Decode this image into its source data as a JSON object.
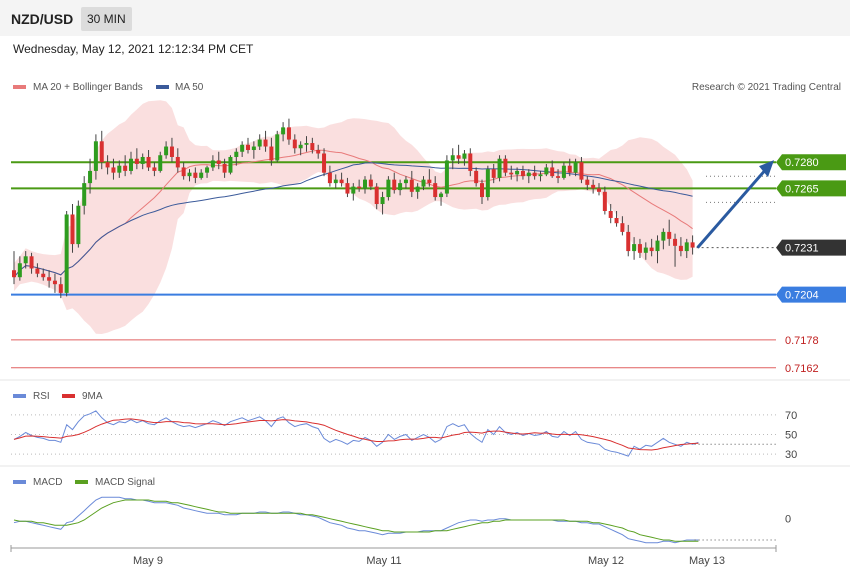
{
  "header": {
    "pair": "NZD/USD",
    "timeframe": "30 MIN"
  },
  "date_line": "Wednesday, May 12, 2021 12:12:34 PM CET",
  "legend": {
    "ma20": "MA 20 + Bollinger Bands",
    "ma50": "MA 50",
    "credit": "Research © 2021 Trading Central",
    "rsi": "RSI",
    "rsi_ma": "9MA",
    "macd": "MACD",
    "macd_signal": "MACD Signal"
  },
  "colors": {
    "bull": "#2e9c1f",
    "bear": "#d93030",
    "bands": "#fadcdc",
    "ma20": "#e87a7a",
    "ma50": "#3b5a9a",
    "resistance": "#4a9a14",
    "support": "#3a7de0",
    "deep_support": "#e06060",
    "current": "#333333",
    "rsi": "#6a8ad8",
    "macd": "#6a8ad8",
    "signal": "#5aa020",
    "arrow": "#2a5aa0"
  },
  "chart_data": {
    "type": "candlestick",
    "x_ticks": [
      "May 9",
      "May 11",
      "May 12",
      "May 13"
    ],
    "ylim": [
      0.7155,
      0.7318
    ],
    "candles_ohlc": [
      [
        0.7218,
        0.7229,
        0.721,
        0.7214
      ],
      [
        0.7214,
        0.7226,
        0.7212,
        0.7222
      ],
      [
        0.7222,
        0.7229,
        0.7219,
        0.7226
      ],
      [
        0.7226,
        0.7228,
        0.7216,
        0.7219
      ],
      [
        0.7219,
        0.7222,
        0.7214,
        0.7216
      ],
      [
        0.7216,
        0.7219,
        0.7212,
        0.7214
      ],
      [
        0.7214,
        0.7218,
        0.7208,
        0.7212
      ],
      [
        0.7212,
        0.7216,
        0.7205,
        0.721
      ],
      [
        0.721,
        0.7214,
        0.7202,
        0.7205
      ],
      [
        0.7205,
        0.7252,
        0.7203,
        0.725
      ],
      [
        0.725,
        0.7256,
        0.7228,
        0.7233
      ],
      [
        0.7233,
        0.7258,
        0.7231,
        0.7255
      ],
      [
        0.7255,
        0.7272,
        0.725,
        0.7268
      ],
      [
        0.7268,
        0.7282,
        0.7262,
        0.7275
      ],
      [
        0.7275,
        0.7296,
        0.727,
        0.7292
      ],
      [
        0.7292,
        0.7298,
        0.7276,
        0.728
      ],
      [
        0.728,
        0.7284,
        0.7273,
        0.7277
      ],
      [
        0.7277,
        0.7282,
        0.727,
        0.7274
      ],
      [
        0.7274,
        0.7281,
        0.7271,
        0.7278
      ],
      [
        0.7278,
        0.7284,
        0.7272,
        0.7275
      ],
      [
        0.7275,
        0.7286,
        0.7273,
        0.7282
      ],
      [
        0.7282,
        0.7288,
        0.7276,
        0.7279
      ],
      [
        0.7279,
        0.7285,
        0.7276,
        0.7283
      ],
      [
        0.7283,
        0.7287,
        0.7275,
        0.7277
      ],
      [
        0.7277,
        0.728,
        0.7272,
        0.7275
      ],
      [
        0.7275,
        0.7286,
        0.7274,
        0.7284
      ],
      [
        0.7284,
        0.7292,
        0.7282,
        0.7289
      ],
      [
        0.7289,
        0.7294,
        0.728,
        0.7283
      ],
      [
        0.7283,
        0.7288,
        0.7274,
        0.7277
      ],
      [
        0.7277,
        0.728,
        0.727,
        0.7272
      ],
      [
        0.7272,
        0.7276,
        0.7269,
        0.7274
      ],
      [
        0.7274,
        0.7277,
        0.7268,
        0.7271
      ],
      [
        0.7271,
        0.7276,
        0.727,
        0.7274
      ],
      [
        0.7274,
        0.7278,
        0.7271,
        0.7277
      ],
      [
        0.7277,
        0.7284,
        0.7275,
        0.7281
      ],
      [
        0.7281,
        0.7286,
        0.7276,
        0.7279
      ],
      [
        0.7279,
        0.7282,
        0.7271,
        0.7274
      ],
      [
        0.7274,
        0.7284,
        0.7273,
        0.7283
      ],
      [
        0.7283,
        0.7288,
        0.7278,
        0.7286
      ],
      [
        0.7286,
        0.7292,
        0.7283,
        0.729
      ],
      [
        0.729,
        0.7294,
        0.7285,
        0.7287
      ],
      [
        0.7287,
        0.7292,
        0.7282,
        0.7289
      ],
      [
        0.7289,
        0.7296,
        0.7287,
        0.7293
      ],
      [
        0.7293,
        0.7298,
        0.7286,
        0.7289
      ],
      [
        0.7289,
        0.7294,
        0.7278,
        0.7281
      ],
      [
        0.7281,
        0.7298,
        0.728,
        0.7296
      ],
      [
        0.7296,
        0.7303,
        0.7292,
        0.73
      ],
      [
        0.73,
        0.7305,
        0.729,
        0.7293
      ],
      [
        0.7293,
        0.7296,
        0.7285,
        0.7288
      ],
      [
        0.7288,
        0.7292,
        0.7284,
        0.729
      ],
      [
        0.729,
        0.7295,
        0.7286,
        0.7291
      ],
      [
        0.7291,
        0.7294,
        0.7285,
        0.7287
      ],
      [
        0.7287,
        0.729,
        0.7282,
        0.7285
      ],
      [
        0.7285,
        0.7288,
        0.7272,
        0.7274
      ],
      [
        0.7274,
        0.7278,
        0.7266,
        0.7268
      ],
      [
        0.7268,
        0.7273,
        0.7265,
        0.727
      ],
      [
        0.727,
        0.7274,
        0.7266,
        0.7268
      ],
      [
        0.7268,
        0.7271,
        0.726,
        0.7262
      ],
      [
        0.7262,
        0.7268,
        0.7258,
        0.7266
      ],
      [
        0.7266,
        0.727,
        0.7263,
        0.7265
      ],
      [
        0.7265,
        0.7272,
        0.7262,
        0.727
      ],
      [
        0.727,
        0.7273,
        0.7264,
        0.7266
      ],
      [
        0.7266,
        0.7268,
        0.7253,
        0.7256
      ],
      [
        0.7256,
        0.7263,
        0.725,
        0.726
      ],
      [
        0.726,
        0.7272,
        0.7258,
        0.727
      ],
      [
        0.727,
        0.7274,
        0.7262,
        0.7264
      ],
      [
        0.7264,
        0.727,
        0.7261,
        0.7268
      ],
      [
        0.7268,
        0.7272,
        0.7265,
        0.727
      ],
      [
        0.727,
        0.7275,
        0.726,
        0.7263
      ],
      [
        0.7263,
        0.7268,
        0.7259,
        0.7266
      ],
      [
        0.7266,
        0.7272,
        0.7264,
        0.727
      ],
      [
        0.727,
        0.7276,
        0.7266,
        0.7268
      ],
      [
        0.7268,
        0.7272,
        0.7258,
        0.726
      ],
      [
        0.726,
        0.7263,
        0.7255,
        0.7262
      ],
      [
        0.7262,
        0.7284,
        0.726,
        0.7281
      ],
      [
        0.7281,
        0.7288,
        0.7276,
        0.7284
      ],
      [
        0.7284,
        0.729,
        0.7279,
        0.7282
      ],
      [
        0.7282,
        0.7287,
        0.7278,
        0.7285
      ],
      [
        0.7285,
        0.7288,
        0.7272,
        0.7275
      ],
      [
        0.7275,
        0.7277,
        0.7266,
        0.7268
      ],
      [
        0.7268,
        0.727,
        0.7256,
        0.726
      ],
      [
        0.726,
        0.7278,
        0.7258,
        0.7276
      ],
      [
        0.7276,
        0.7279,
        0.7268,
        0.7271
      ],
      [
        0.7271,
        0.7284,
        0.7269,
        0.7282
      ],
      [
        0.7282,
        0.7284,
        0.7272,
        0.7274
      ],
      [
        0.7274,
        0.7278,
        0.727,
        0.7273
      ],
      [
        0.7273,
        0.7277,
        0.7269,
        0.7275
      ],
      [
        0.7275,
        0.7278,
        0.727,
        0.7272
      ],
      [
        0.7272,
        0.7276,
        0.7268,
        0.7274
      ],
      [
        0.7274,
        0.7278,
        0.727,
        0.7272
      ],
      [
        0.7272,
        0.7275,
        0.7269,
        0.7273
      ],
      [
        0.7273,
        0.7279,
        0.7272,
        0.7277
      ],
      [
        0.7277,
        0.7281,
        0.7271,
        0.7272
      ],
      [
        0.7272,
        0.7276,
        0.7268,
        0.7271
      ],
      [
        0.7271,
        0.728,
        0.727,
        0.7278
      ],
      [
        0.7278,
        0.7282,
        0.7272,
        0.7274
      ],
      [
        0.7274,
        0.7282,
        0.7272,
        0.728
      ],
      [
        0.728,
        0.7283,
        0.7268,
        0.727
      ],
      [
        0.727,
        0.7272,
        0.7264,
        0.7267
      ],
      [
        0.7267,
        0.727,
        0.7262,
        0.7265
      ],
      [
        0.7265,
        0.7268,
        0.7261,
        0.7263
      ],
      [
        0.7263,
        0.7266,
        0.725,
        0.7252
      ],
      [
        0.7252,
        0.7256,
        0.7245,
        0.7248
      ],
      [
        0.7248,
        0.7252,
        0.7243,
        0.7245
      ],
      [
        0.7245,
        0.7249,
        0.7238,
        0.724
      ],
      [
        0.724,
        0.7244,
        0.7226,
        0.7229
      ],
      [
        0.7229,
        0.7237,
        0.7224,
        0.7233
      ],
      [
        0.7233,
        0.7236,
        0.7225,
        0.7228
      ],
      [
        0.7228,
        0.7234,
        0.7224,
        0.7231
      ],
      [
        0.7231,
        0.7236,
        0.7226,
        0.7229
      ],
      [
        0.7229,
        0.7238,
        0.7222,
        0.7235
      ],
      [
        0.7235,
        0.7242,
        0.723,
        0.724
      ],
      [
        0.724,
        0.7247,
        0.7232,
        0.7236
      ],
      [
        0.7236,
        0.7239,
        0.722,
        0.7232
      ],
      [
        0.7232,
        0.7237,
        0.7226,
        0.7229
      ],
      [
        0.7229,
        0.7236,
        0.7225,
        0.7234
      ],
      [
        0.7234,
        0.7238,
        0.7227,
        0.7231
      ]
    ],
    "levels": [
      {
        "value": 0.728,
        "label": "0.7280",
        "kind": "resistance"
      },
      {
        "value": 0.7265,
        "label": "0.7265",
        "kind": "resistance"
      },
      {
        "value": 0.7231,
        "label": "0.7231",
        "kind": "current"
      },
      {
        "value": 0.7204,
        "label": "0.7204",
        "kind": "support"
      },
      {
        "value": 0.7178,
        "label": "0.7178",
        "kind": "deep_support"
      },
      {
        "value": 0.7162,
        "label": "0.7162",
        "kind": "deep_support"
      }
    ],
    "rsi": {
      "ylim": [
        22,
        80
      ],
      "ticks": [
        "70",
        "50",
        "30"
      ],
      "tick_values": [
        70,
        50,
        30
      ],
      "rsi": [
        45,
        48,
        52,
        49,
        47,
        46,
        44,
        44,
        42,
        60,
        55,
        63,
        69,
        71,
        74,
        67,
        62,
        60,
        63,
        62,
        65,
        62,
        64,
        61,
        60,
        64,
        67,
        63,
        60,
        58,
        59,
        57,
        59,
        61,
        64,
        62,
        59,
        63,
        65,
        67,
        64,
        66,
        68,
        64,
        58,
        66,
        68,
        62,
        58,
        60,
        61,
        58,
        56,
        46,
        42,
        45,
        43,
        40,
        44,
        43,
        47,
        44,
        38,
        42,
        50,
        45,
        48,
        50,
        44,
        47,
        50,
        47,
        42,
        45,
        58,
        61,
        58,
        60,
        51,
        46,
        42,
        55,
        50,
        58,
        52,
        50,
        52,
        49,
        51,
        49,
        50,
        53,
        48,
        47,
        53,
        49,
        53,
        45,
        42,
        41,
        40,
        35,
        33,
        32,
        30,
        28,
        38,
        35,
        39,
        38,
        42,
        46,
        42,
        40,
        38,
        42,
        40,
        42
      ]
    },
    "macd": {
      "zero_label": "0",
      "macd": [
        -0.0003,
        -0.0002,
        -0.0002,
        -0.0003,
        -0.0004,
        -0.0005,
        -0.0006,
        -0.0007,
        -0.0008,
        -0.0003,
        -0.0002,
        0.0002,
        0.0006,
        0.001,
        0.0014,
        0.0016,
        0.0016,
        0.0016,
        0.0016,
        0.0015,
        0.0015,
        0.0014,
        0.0014,
        0.0013,
        0.0012,
        0.0012,
        0.0012,
        0.0011,
        0.001,
        0.0008,
        0.0007,
        0.0006,
        0.0005,
        0.0004,
        0.0004,
        0.0004,
        0.0003,
        0.0003,
        0.0003,
        0.0004,
        0.0004,
        0.0004,
        0.0005,
        0.0005,
        0.0004,
        0.0004,
        0.0005,
        0.0005,
        0.0004,
        0.0003,
        0.0003,
        0.0002,
        0.0001,
        -0.0001,
        -0.0003,
        -0.0004,
        -0.0005,
        -0.0007,
        -0.0008,
        -0.0009,
        -0.0009,
        -0.001,
        -0.0011,
        -0.0012,
        -0.0011,
        -0.0011,
        -0.0011,
        -0.001,
        -0.001,
        -0.001,
        -0.0009,
        -0.0009,
        -0.0009,
        -0.0009,
        -0.0007,
        -0.0005,
        -0.0003,
        -0.0002,
        -0.0001,
        -0.0001,
        -0.0002,
        -0.0001,
        -0.0001,
        0.0,
        0.0,
        -0.0001,
        -0.0001,
        -0.0001,
        -0.0001,
        -0.0001,
        -0.0001,
        -0.0001,
        -0.0001,
        -0.0002,
        -0.0002,
        -0.0002,
        -0.0002,
        -0.0003,
        -0.0003,
        -0.0004,
        -0.0004,
        -0.0006,
        -0.0008,
        -0.001,
        -0.0012,
        -0.0015,
        -0.0016,
        -0.0017,
        -0.0018,
        -0.0018,
        -0.0018,
        -0.0017,
        -0.0017,
        -0.0018,
        -0.0017,
        -0.0016,
        -0.0016,
        -0.0016
      ],
      "signal": [
        -0.0001,
        -0.0002,
        -0.0002,
        -0.0002,
        -0.0003,
        -0.0003,
        -0.0004,
        -0.0005,
        -0.0005,
        -0.0005,
        -0.0004,
        -0.0003,
        -0.0001,
        0.0002,
        0.0005,
        0.0008,
        0.001,
        0.0012,
        0.0013,
        0.0014,
        0.0014,
        0.0014,
        0.0014,
        0.0014,
        0.0013,
        0.0013,
        0.0013,
        0.0012,
        0.0012,
        0.0011,
        0.001,
        0.0009,
        0.0008,
        0.0007,
        0.0006,
        0.0005,
        0.0005,
        0.0004,
        0.0004,
        0.0004,
        0.0004,
        0.0004,
        0.0004,
        0.0004,
        0.0004,
        0.0004,
        0.0004,
        0.0004,
        0.0004,
        0.0004,
        0.0003,
        0.0003,
        0.0002,
        0.0001,
        0.0,
        -0.0001,
        -0.0002,
        -0.0003,
        -0.0004,
        -0.0005,
        -0.0006,
        -0.0007,
        -0.0008,
        -0.0009,
        -0.0009,
        -0.001,
        -0.001,
        -0.001,
        -0.001,
        -0.001,
        -0.001,
        -0.001,
        -0.0009,
        -0.0009,
        -0.0009,
        -0.0008,
        -0.0007,
        -0.0006,
        -0.0005,
        -0.0004,
        -0.0003,
        -0.0003,
        -0.0002,
        -0.0002,
        -0.0001,
        -0.0001,
        -0.0001,
        -0.0001,
        -0.0001,
        -0.0001,
        -0.0001,
        -0.0001,
        -0.0001,
        -0.0001,
        -0.0001,
        -0.0002,
        -0.0002,
        -0.0002,
        -0.0002,
        -0.0003,
        -0.0003,
        -0.0004,
        -0.0005,
        -0.0006,
        -0.0007,
        -0.0009,
        -0.001,
        -0.0012,
        -0.0013,
        -0.0014,
        -0.0015,
        -0.0016,
        -0.0016,
        -0.0017,
        -0.0017,
        -0.0017,
        -0.0017,
        -0.0017
      ]
    }
  }
}
